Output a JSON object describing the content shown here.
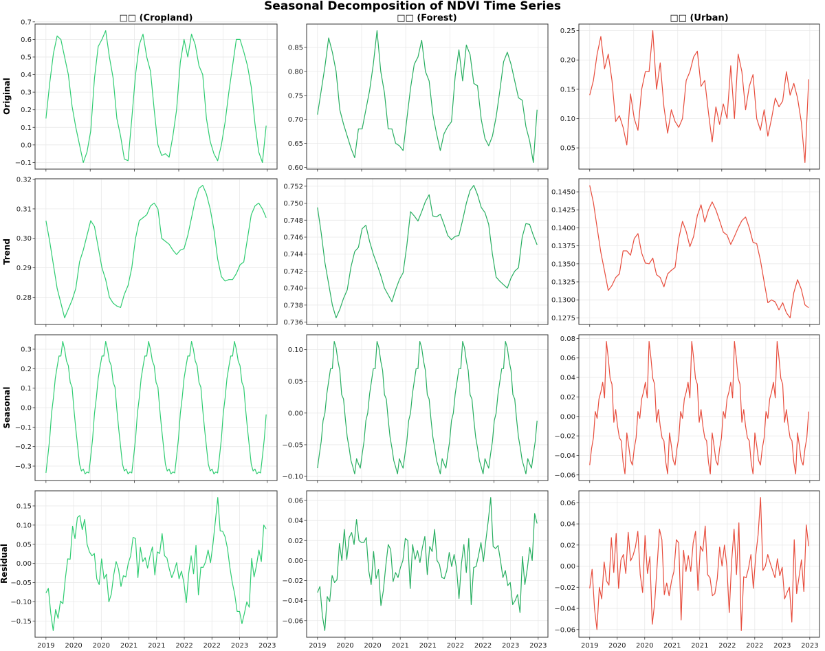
{
  "title": "Seasonal Decomposition of NDVI Time Series",
  "columns": [
    {
      "title": "□□ (Cropland)",
      "color": "#2ecc71"
    },
    {
      "title": "□□ (Forest)",
      "color": "#27ae60"
    },
    {
      "title": "□□ (Urban)",
      "color": "#e74c3c"
    }
  ],
  "rows": [
    "Original",
    "Trend",
    "Seasonal",
    "Residual"
  ],
  "x_tick_labels": [
    "2019",
    "2020",
    "2020",
    "2021",
    "2021",
    "2022",
    "2022",
    "2023",
    "2023"
  ],
  "grid": true,
  "chart_data": [
    {
      "type": "line",
      "row": "Original",
      "column": "Cropland",
      "ytick_labels": [
        "−0.1",
        "0.0",
        "0.1",
        "0.2",
        "0.3",
        "0.4",
        "0.5",
        "0.6",
        "0.7"
      ],
      "values": [
        0.15,
        0.35,
        0.52,
        0.62,
        0.6,
        0.5,
        0.4,
        0.22,
        0.1,
        0.0,
        -0.1,
        -0.04,
        0.08,
        0.38,
        0.56,
        0.6,
        0.65,
        0.5,
        0.38,
        0.15,
        0.05,
        -0.08,
        -0.09,
        0.15,
        0.4,
        0.57,
        0.63,
        0.5,
        0.42,
        0.2,
        0.0,
        -0.06,
        -0.05,
        -0.07,
        0.05,
        0.2,
        0.47,
        0.6,
        0.5,
        0.63,
        0.57,
        0.45,
        0.4,
        0.15,
        0.02,
        -0.05,
        -0.09,
        0.0,
        0.13,
        0.3,
        0.45,
        0.6,
        0.6,
        0.53,
        0.45,
        0.33,
        0.12,
        -0.04,
        -0.1,
        0.11
      ]
    },
    {
      "type": "line",
      "row": "Original",
      "column": "Forest",
      "ytick_labels": [
        "0.60",
        "0.65",
        "0.70",
        "0.75",
        "0.80",
        "0.85"
      ],
      "values": [
        0.71,
        0.76,
        0.81,
        0.87,
        0.84,
        0.8,
        0.72,
        0.69,
        0.665,
        0.64,
        0.62,
        0.68,
        0.68,
        0.72,
        0.76,
        0.815,
        0.885,
        0.8,
        0.755,
        0.68,
        0.68,
        0.65,
        0.645,
        0.635,
        0.7,
        0.765,
        0.815,
        0.83,
        0.865,
        0.8,
        0.78,
        0.71,
        0.67,
        0.635,
        0.67,
        0.685,
        0.695,
        0.79,
        0.845,
        0.78,
        0.855,
        0.835,
        0.775,
        0.77,
        0.7,
        0.66,
        0.645,
        0.665,
        0.705,
        0.76,
        0.82,
        0.84,
        0.815,
        0.78,
        0.745,
        0.74,
        0.685,
        0.655,
        0.61,
        0.72
      ]
    },
    {
      "type": "line",
      "row": "Original",
      "column": "Urban",
      "ytick_labels": [
        "0.05",
        "0.10",
        "0.15",
        "0.20",
        "0.25"
      ],
      "values": [
        0.14,
        0.165,
        0.21,
        0.24,
        0.185,
        0.21,
        0.165,
        0.095,
        0.105,
        0.085,
        0.055,
        0.142,
        0.1,
        0.08,
        0.15,
        0.18,
        0.18,
        0.25,
        0.15,
        0.195,
        0.12,
        0.075,
        0.115,
        0.095,
        0.085,
        0.1,
        0.165,
        0.18,
        0.205,
        0.215,
        0.155,
        0.165,
        0.11,
        0.06,
        0.12,
        0.09,
        0.125,
        0.1,
        0.19,
        0.1,
        0.21,
        0.18,
        0.115,
        0.155,
        0.175,
        0.1,
        0.08,
        0.115,
        0.07,
        0.1,
        0.135,
        0.12,
        0.13,
        0.18,
        0.14,
        0.16,
        0.135,
        0.095,
        0.025,
        0.167
      ]
    },
    {
      "type": "line",
      "row": "Trend",
      "column": "Cropland",
      "ytick_labels": [
        "0.28",
        "0.29",
        "0.30",
        "0.31",
        "0.32"
      ],
      "values": [
        0.306,
        0.299,
        0.291,
        0.283,
        0.278,
        0.273,
        0.276,
        0.279,
        0.283,
        0.292,
        0.296,
        0.301,
        0.306,
        0.304,
        0.297,
        0.29,
        0.286,
        0.28,
        0.278,
        0.277,
        0.2765,
        0.281,
        0.284,
        0.29,
        0.3,
        0.306,
        0.307,
        0.308,
        0.311,
        0.312,
        0.31,
        0.3,
        0.299,
        0.298,
        0.296,
        0.2945,
        0.296,
        0.2965,
        0.301,
        0.307,
        0.313,
        0.317,
        0.318,
        0.315,
        0.31,
        0.303,
        0.293,
        0.287,
        0.2855,
        0.286,
        0.286,
        0.288,
        0.291,
        0.292,
        0.3,
        0.308,
        0.311,
        0.312,
        0.31,
        0.307
      ]
    },
    {
      "type": "line",
      "row": "Trend",
      "column": "Forest",
      "ytick_labels": [
        "0.736",
        "0.738",
        "0.740",
        "0.742",
        "0.744",
        "0.746",
        "0.748",
        "0.750",
        "0.752"
      ],
      "values": [
        0.7495,
        0.7465,
        0.743,
        0.7405,
        0.738,
        0.7365,
        0.7375,
        0.7388,
        0.7398,
        0.7425,
        0.7443,
        0.7448,
        0.747,
        0.7474,
        0.7455,
        0.744,
        0.7428,
        0.7415,
        0.74,
        0.7392,
        0.7384,
        0.7398,
        0.741,
        0.7418,
        0.745,
        0.749,
        0.7485,
        0.7479,
        0.749,
        0.7502,
        0.751,
        0.7485,
        0.7484,
        0.7487,
        0.7475,
        0.7462,
        0.7457,
        0.7461,
        0.7462,
        0.748,
        0.75,
        0.7515,
        0.7521,
        0.751,
        0.7495,
        0.7489,
        0.7475,
        0.744,
        0.7413,
        0.7408,
        0.7404,
        0.74,
        0.7412,
        0.742,
        0.7424,
        0.746,
        0.7476,
        0.7475,
        0.7462,
        0.7451
      ]
    },
    {
      "type": "line",
      "row": "Trend",
      "column": "Urban",
      "ytick_labels": [
        "0.1275",
        "0.1300",
        "0.1325",
        "0.1350",
        "0.1375",
        "0.1400",
        "0.1425",
        "0.1450"
      ],
      "values": [
        0.1459,
        0.1435,
        0.14,
        0.1366,
        0.134,
        0.1313,
        0.132,
        0.1331,
        0.1336,
        0.1368,
        0.1368,
        0.1362,
        0.1385,
        0.1392,
        0.1365,
        0.1351,
        0.135,
        0.1358,
        0.1335,
        0.1331,
        0.1318,
        0.1336,
        0.1341,
        0.1345,
        0.1385,
        0.1409,
        0.1395,
        0.1374,
        0.1388,
        0.1417,
        0.1432,
        0.1408,
        0.1425,
        0.1436,
        0.1425,
        0.141,
        0.1394,
        0.139,
        0.1377,
        0.1388,
        0.14,
        0.141,
        0.1415,
        0.14,
        0.138,
        0.1378,
        0.1355,
        0.1325,
        0.1296,
        0.13,
        0.1297,
        0.1286,
        0.1296,
        0.1282,
        0.1275,
        0.131,
        0.1328,
        0.1315,
        0.1293,
        0.1289
      ]
    },
    {
      "type": "line",
      "row": "Seasonal",
      "column": "Cropland",
      "ytick_labels": [
        "−0.3",
        "−0.2",
        "−0.1",
        "0.0",
        "0.1",
        "0.2",
        "0.3"
      ],
      "values": [
        -0.335,
        -0.25,
        -0.16,
        -0.03,
        0.05,
        0.15,
        0.21,
        0.265,
        0.265,
        0.34,
        0.3,
        0.24,
        0.215,
        0.13,
        0.105,
        -0.01,
        -0.11,
        -0.2,
        -0.29,
        -0.325,
        -0.315,
        -0.34,
        -0.33,
        -0.335,
        -0.25,
        -0.16,
        -0.03,
        0.05,
        0.15,
        0.21,
        0.265,
        0.265,
        0.34,
        0.3,
        0.24,
        0.215,
        0.13,
        0.105,
        -0.01,
        -0.11,
        -0.2,
        -0.29,
        -0.325,
        -0.315,
        -0.34,
        -0.33,
        -0.335,
        -0.25,
        -0.16,
        -0.03,
        0.05,
        0.15,
        0.21,
        0.265,
        0.265,
        0.34,
        0.3,
        0.24,
        0.215,
        0.13,
        0.105,
        -0.01,
        -0.11,
        -0.2,
        -0.29,
        -0.325,
        -0.315,
        -0.34,
        -0.33,
        -0.335,
        -0.25,
        -0.16,
        -0.03,
        0.05,
        0.15,
        0.21,
        0.265,
        0.265,
        0.34,
        0.3,
        0.24,
        0.215,
        0.13,
        0.105,
        -0.01,
        -0.11,
        -0.2,
        -0.29,
        -0.325,
        -0.315,
        -0.34,
        -0.33,
        -0.335,
        -0.25,
        -0.16,
        -0.03,
        0.05,
        0.15,
        0.21,
        0.265,
        0.265,
        0.34,
        0.3,
        0.24,
        0.215,
        0.13,
        0.105,
        -0.01,
        -0.11,
        -0.2,
        -0.29,
        -0.325,
        -0.315,
        -0.34,
        -0.33,
        -0.335,
        -0.25,
        -0.16,
        -0.035
      ]
    },
    {
      "type": "line",
      "row": "Seasonal",
      "column": "Forest",
      "ytick_labels": [
        "−0.10",
        "−0.05",
        "0.00",
        "0.05",
        "0.10"
      ],
      "values": [
        -0.087,
        -0.065,
        -0.045,
        -0.012,
        0.0,
        0.03,
        0.05,
        0.07,
        0.07,
        0.113,
        0.103,
        0.082,
        0.067,
        0.029,
        0.022,
        -0.01,
        -0.038,
        -0.055,
        -0.075,
        -0.085,
        -0.096,
        -0.072,
        -0.08,
        -0.087,
        -0.065,
        -0.045,
        -0.012,
        0.0,
        0.03,
        0.05,
        0.07,
        0.07,
        0.113,
        0.103,
        0.082,
        0.067,
        0.029,
        0.022,
        -0.01,
        -0.038,
        -0.055,
        -0.075,
        -0.085,
        -0.096,
        -0.072,
        -0.08,
        -0.087,
        -0.065,
        -0.045,
        -0.012,
        0.0,
        0.03,
        0.05,
        0.07,
        0.07,
        0.113,
        0.103,
        0.082,
        0.067,
        0.029,
        0.022,
        -0.01,
        -0.038,
        -0.055,
        -0.075,
        -0.085,
        -0.096,
        -0.072,
        -0.08,
        -0.087,
        -0.065,
        -0.045,
        -0.012,
        0.0,
        0.03,
        0.05,
        0.07,
        0.07,
        0.113,
        0.103,
        0.082,
        0.067,
        0.029,
        0.022,
        -0.01,
        -0.038,
        -0.055,
        -0.075,
        -0.085,
        -0.096,
        -0.072,
        -0.08,
        -0.087,
        -0.065,
        -0.045,
        -0.012,
        0.0,
        0.03,
        0.05,
        0.07,
        0.07,
        0.113,
        0.103,
        0.082,
        0.067,
        0.029,
        0.022,
        -0.01,
        -0.038,
        -0.055,
        -0.075,
        -0.085,
        -0.096,
        -0.072,
        -0.08,
        -0.087,
        -0.065,
        -0.045,
        -0.012
      ]
    },
    {
      "type": "line",
      "row": "Seasonal",
      "column": "Urban",
      "ytick_labels": [
        "−0.06",
        "−0.04",
        "−0.02",
        "0.00",
        "0.02",
        "0.04",
        "0.06",
        "0.08"
      ],
      "values": [
        -0.05,
        -0.033,
        -0.022,
        0.005,
        -0.002,
        0.018,
        0.025,
        0.035,
        0.019,
        0.077,
        0.06,
        0.039,
        0.033,
        -0.006,
        0.007,
        -0.01,
        -0.022,
        -0.025,
        -0.047,
        -0.059,
        -0.017,
        -0.03,
        -0.045,
        -0.05,
        -0.033,
        -0.022,
        0.005,
        -0.002,
        0.018,
        0.025,
        0.035,
        0.019,
        0.077,
        0.06,
        0.039,
        0.033,
        -0.006,
        0.007,
        -0.01,
        -0.022,
        -0.025,
        -0.047,
        -0.059,
        -0.017,
        -0.03,
        -0.045,
        -0.05,
        -0.033,
        -0.022,
        0.005,
        -0.002,
        0.018,
        0.025,
        0.035,
        0.019,
        0.077,
        0.06,
        0.039,
        0.033,
        -0.006,
        0.007,
        -0.01,
        -0.022,
        -0.025,
        -0.047,
        -0.059,
        -0.017,
        -0.03,
        -0.045,
        -0.05,
        -0.033,
        -0.022,
        0.005,
        -0.002,
        0.018,
        0.025,
        0.035,
        0.019,
        0.077,
        0.06,
        0.039,
        0.033,
        -0.006,
        0.007,
        -0.01,
        -0.022,
        -0.025,
        -0.047,
        -0.059,
        -0.017,
        -0.03,
        -0.045,
        -0.05,
        -0.033,
        -0.022,
        0.005,
        -0.002,
        0.018,
        0.025,
        0.035,
        0.019,
        0.077,
        0.06,
        0.039,
        0.033,
        -0.006,
        0.007,
        -0.01,
        -0.022,
        -0.025,
        -0.047,
        -0.059,
        -0.017,
        -0.03,
        -0.045,
        -0.05,
        -0.033,
        -0.022,
        0.005
      ]
    },
    {
      "type": "line",
      "row": "Residual",
      "column": "Cropland",
      "ytick_labels": [
        "−0.15",
        "−0.10",
        "−0.05",
        "0.00",
        "0.05",
        "0.10",
        "0.15"
      ],
      "values": [
        -0.077,
        -0.065,
        -0.13,
        -0.175,
        -0.12,
        -0.143,
        -0.098,
        -0.105,
        -0.04,
        0.012,
        0.011,
        0.097,
        0.065,
        0.12,
        0.125,
        0.088,
        0.115,
        0.05,
        0.03,
        0.02,
        0.026,
        -0.04,
        -0.055,
        0.012,
        -0.04,
        -0.028,
        -0.1,
        -0.08,
        -0.03,
        0.005,
        -0.015,
        -0.06,
        -0.032,
        -0.035,
        0.0,
        0.02,
        0.068,
        0.065,
        -0.037,
        0.042,
        0.005,
        0.015,
        -0.012,
        0.02,
        0.043,
        -0.03,
        0.03,
        0.026,
        0.078,
        0.02,
        0.014,
        -0.015,
        -0.037,
        -0.02,
        0.002,
        -0.04,
        -0.02,
        -0.05,
        -0.102,
        -0.025,
        0.02,
        -0.027,
        0.047,
        -0.082,
        -0.01,
        -0.01,
        0.005,
        0.035,
        0.002,
        0.05,
        0.11,
        0.172,
        0.085,
        0.084,
        0.07,
        0.04,
        -0.01,
        -0.05,
        -0.08,
        -0.125,
        -0.125,
        -0.157,
        -0.13,
        -0.1,
        -0.114,
        0.013,
        -0.035,
        -0.005,
        0.035,
        0.005,
        0.1,
        0.09
      ]
    },
    {
      "type": "line",
      "row": "Residual",
      "column": "Forest",
      "ytick_labels": [
        "−0.06",
        "−0.04",
        "−0.02",
        "0.00",
        "0.02",
        "0.04",
        "0.06"
      ],
      "values": [
        -0.032,
        -0.026,
        -0.055,
        -0.07,
        -0.036,
        -0.041,
        -0.015,
        -0.022,
        -0.019,
        0.017,
        0.0,
        0.031,
        0.001,
        0.023,
        0.028,
        0.016,
        0.041,
        0.02,
        0.018,
        0.018,
        0.023,
        -0.01,
        -0.024,
        0.009,
        -0.018,
        -0.009,
        -0.045,
        -0.03,
        -0.005,
        0.016,
        0.011,
        -0.021,
        -0.012,
        -0.017,
        -0.007,
        0.0,
        0.022,
        0.02,
        -0.028,
        0.016,
        0.001,
        0.01,
        -0.002,
        0.013,
        0.024,
        -0.014,
        0.014,
        0.009,
        0.031,
        0.0,
        -0.004,
        -0.017,
        -0.018,
        -0.01,
        0.008,
        -0.006,
        0.006,
        -0.008,
        -0.038,
        -0.003,
        0.016,
        -0.012,
        0.022,
        -0.044,
        -0.007,
        -0.006,
        0.005,
        0.018,
        -0.001,
        0.02,
        0.04,
        0.063,
        0.014,
        0.012,
        0.015,
        0.0,
        -0.017,
        -0.01,
        -0.025,
        -0.022,
        -0.044,
        -0.04,
        -0.034,
        -0.052,
        0.004,
        -0.024,
        -0.008,
        0.013,
        0.0,
        0.047,
        0.037
      ]
    },
    {
      "type": "line",
      "row": "Residual",
      "column": "Urban",
      "ytick_labels": [
        "−0.06",
        "−0.04",
        "−0.02",
        "0.00",
        "0.02",
        "0.04",
        "0.06"
      ],
      "values": [
        -0.021,
        -0.003,
        -0.04,
        -0.06,
        -0.02,
        -0.031,
        0.004,
        -0.014,
        -0.018,
        0.027,
        -0.006,
        0.031,
        -0.021,
        0.006,
        0.011,
        -0.007,
        0.032,
        0.005,
        0.01,
        0.018,
        0.033,
        -0.008,
        -0.025,
        0.029,
        -0.007,
        0.009,
        -0.055,
        -0.035,
        0.0,
        0.035,
        0.025,
        -0.027,
        -0.016,
        -0.028,
        -0.014,
        -0.005,
        0.025,
        0.022,
        -0.051,
        0.015,
        -0.005,
        0.01,
        -0.005,
        0.022,
        0.033,
        -0.023,
        0.019,
        0.014,
        0.038,
        -0.008,
        -0.011,
        -0.028,
        -0.026,
        -0.012,
        0.018,
        0.0,
        0.02,
        0.0,
        -0.044,
        0.005,
        0.035,
        -0.008,
        0.041,
        -0.061,
        -0.01,
        -0.011,
        -0.002,
        0.011,
        -0.021,
        0.01,
        0.03,
        0.065,
        -0.004,
        0.0,
        0.011,
        0.003,
        -0.004,
        -0.011,
        0.007,
        -0.009,
        -0.001,
        -0.031,
        -0.025,
        -0.02,
        -0.053,
        0.025,
        -0.026,
        -0.01,
        0.006,
        -0.024,
        0.039,
        0.019
      ]
    }
  ]
}
